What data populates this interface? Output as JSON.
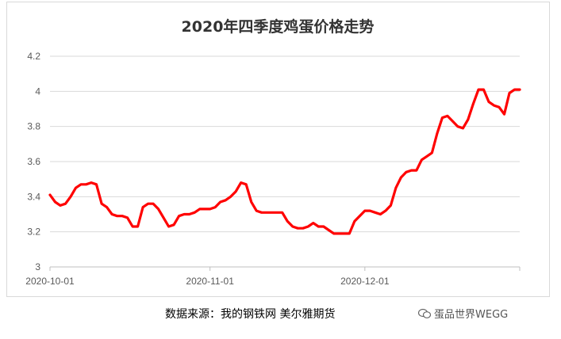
{
  "chart_data": {
    "type": "line",
    "title": "2020年四季度鸡蛋价格走势",
    "xlabel": "",
    "ylabel": "",
    "ylim": [
      3,
      4.2
    ],
    "y_ticks": [
      "3",
      "3.2",
      "3.4",
      "3.6",
      "3.8",
      "4",
      "4.2"
    ],
    "x_ticks": [
      {
        "label": "2020-10-01",
        "index": 0
      },
      {
        "label": "2020-11-01",
        "index": 31
      },
      {
        "label": "2020-12-01",
        "index": 61
      }
    ],
    "grid": true,
    "legend": "none",
    "series": [
      {
        "color": "#ff0000",
        "x": [
          0,
          1,
          2,
          3,
          4,
          5,
          6,
          7,
          8,
          9,
          10,
          11,
          12,
          13,
          14,
          15,
          16,
          17,
          18,
          19,
          20,
          21,
          22,
          23,
          24,
          25,
          26,
          27,
          28,
          29,
          30,
          31,
          32,
          33,
          34,
          35,
          36,
          37,
          38,
          39,
          40,
          41,
          42,
          43,
          44,
          45,
          46,
          47,
          48,
          49,
          50,
          51,
          52,
          53,
          54,
          55,
          56,
          57,
          58,
          59,
          60,
          61,
          62,
          63,
          64,
          65,
          66,
          67,
          68,
          69,
          70,
          71,
          72,
          73,
          74,
          75,
          76,
          77,
          78,
          79,
          80,
          81,
          82,
          83,
          84,
          85,
          86,
          87,
          88,
          89,
          90,
          91
        ],
        "values": [
          3.41,
          3.37,
          3.35,
          3.36,
          3.4,
          3.45,
          3.47,
          3.47,
          3.48,
          3.47,
          3.36,
          3.34,
          3.3,
          3.29,
          3.29,
          3.28,
          3.23,
          3.23,
          3.34,
          3.36,
          3.36,
          3.33,
          3.28,
          3.23,
          3.24,
          3.29,
          3.3,
          3.3,
          3.31,
          3.33,
          3.33,
          3.33,
          3.34,
          3.37,
          3.38,
          3.4,
          3.43,
          3.48,
          3.47,
          3.37,
          3.32,
          3.31,
          3.31,
          3.31,
          3.31,
          3.31,
          3.26,
          3.23,
          3.22,
          3.22,
          3.23,
          3.25,
          3.23,
          3.23,
          3.21,
          3.19,
          3.19,
          3.19,
          3.19,
          3.26,
          3.29,
          3.32,
          3.32,
          3.31,
          3.3,
          3.32,
          3.35,
          3.45,
          3.51,
          3.54,
          3.55,
          3.55,
          3.61,
          3.63,
          3.65,
          3.76,
          3.85,
          3.86,
          3.83,
          3.8,
          3.79,
          3.84,
          3.93,
          4.01,
          4.01,
          3.94,
          3.92,
          3.91,
          3.87,
          3.99,
          4.01,
          4.01
        ]
      }
    ]
  },
  "footer": {
    "source_note": "数据来源：我的钢铁网  美尔雅期货",
    "watermark": "蛋品世界WEGG"
  }
}
